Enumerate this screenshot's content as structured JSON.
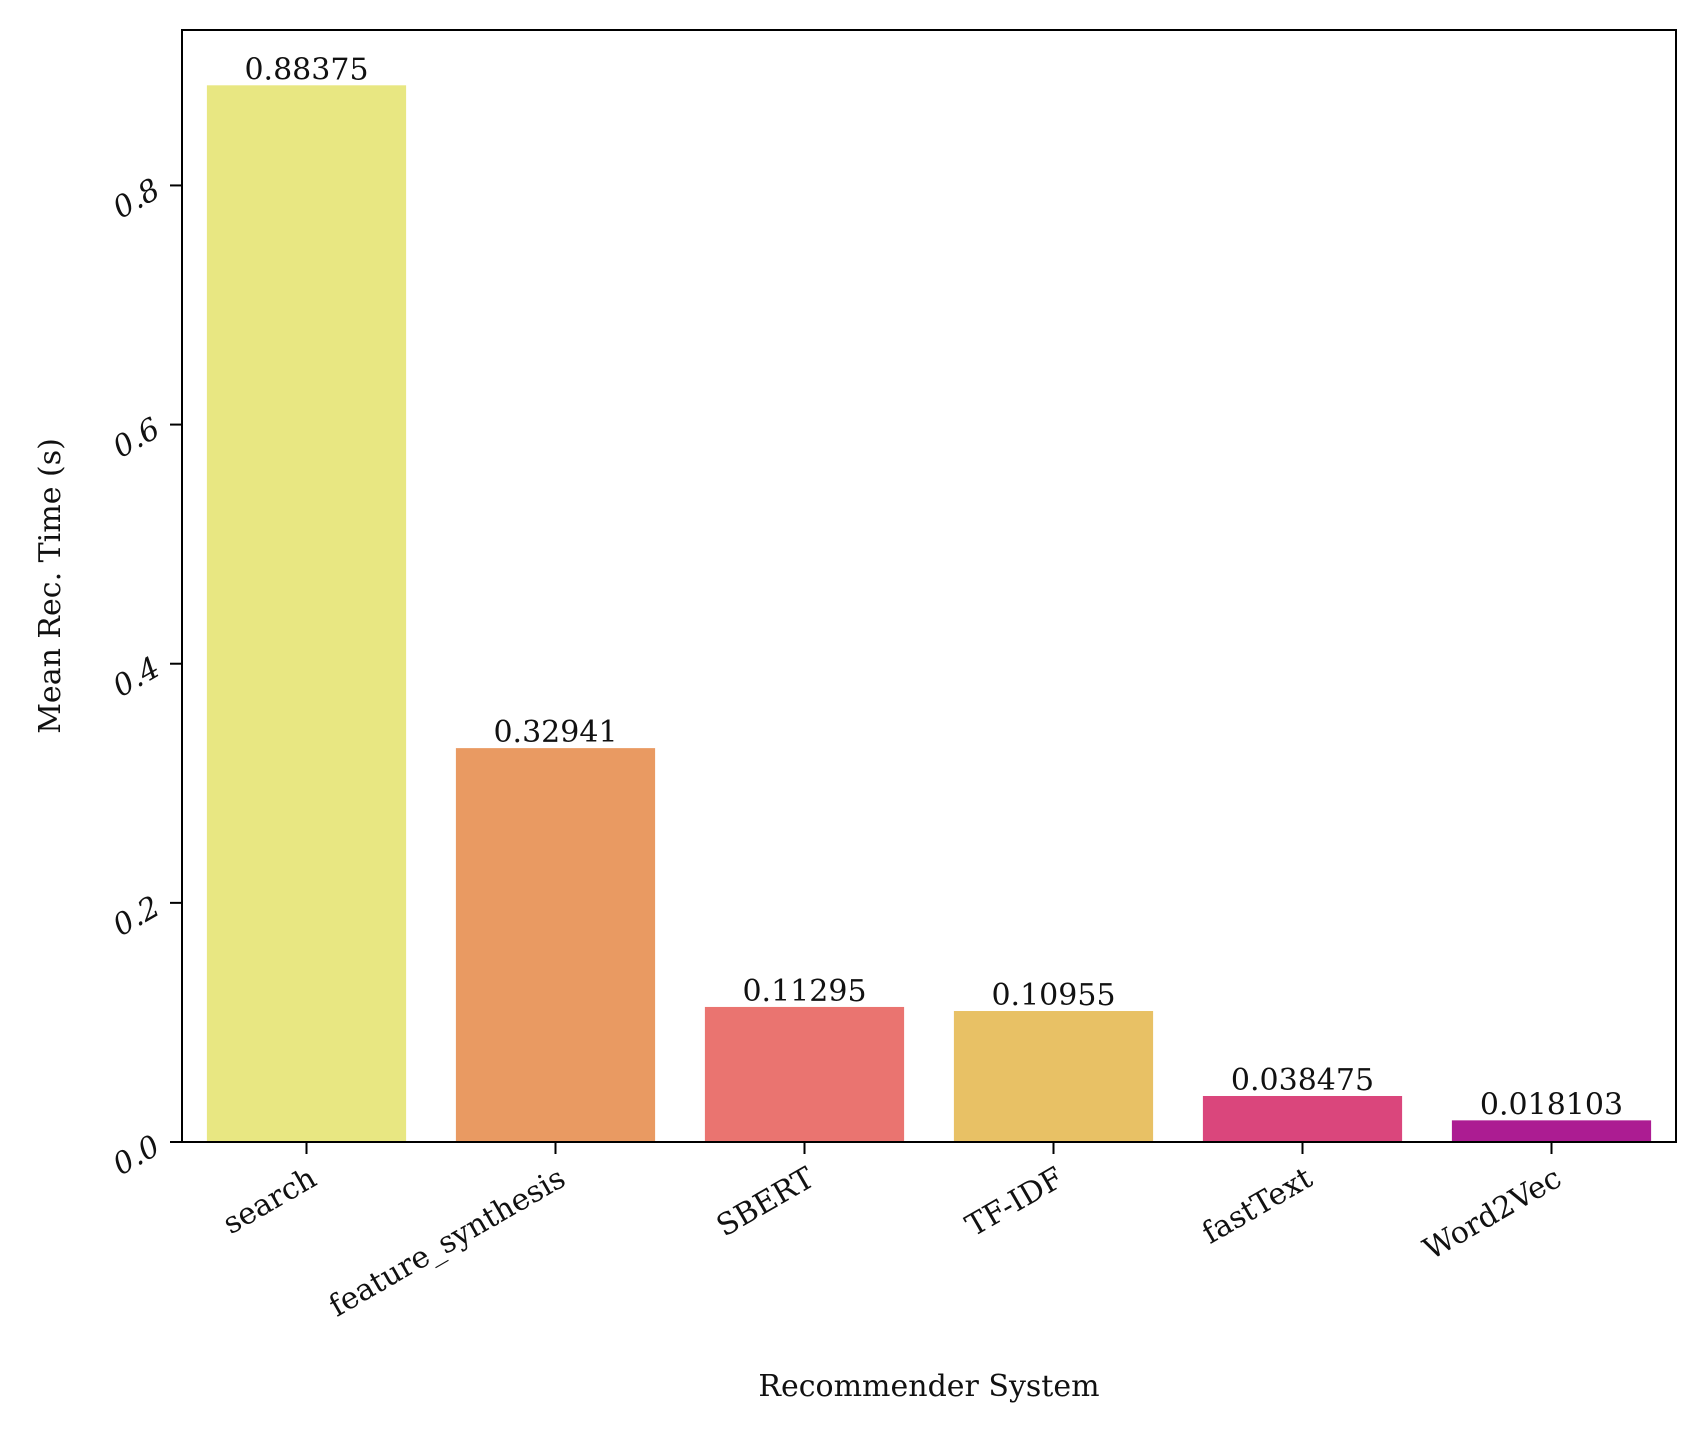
{
  "chart_data": {
    "type": "bar",
    "xlabel": "Recommender System",
    "ylabel": "Mean Rec. Time (s)",
    "ylim": [
      0,
      0.93
    ],
    "yticks": [
      0.0,
      0.2,
      0.4,
      0.6,
      0.8
    ],
    "ytick_labels": [
      "0.0",
      "0.2",
      "0.4",
      "0.6",
      "0.8"
    ],
    "categories": [
      "search",
      "feature_synthesis",
      "SBERT",
      "TF-IDF",
      "fastText",
      "Word2Vec"
    ],
    "values": [
      0.88375,
      0.32941,
      0.11295,
      0.10955,
      0.038475,
      0.018103
    ],
    "value_labels": [
      "0.88375",
      "0.32941",
      "0.11295",
      "0.10955",
      "0.038475",
      "0.018103"
    ],
    "colors": [
      "#e8e782",
      "#e99a62",
      "#ea7470",
      "#e8c165",
      "#da467c",
      "#ac1c92"
    ],
    "grid": false,
    "legend": "none"
  }
}
